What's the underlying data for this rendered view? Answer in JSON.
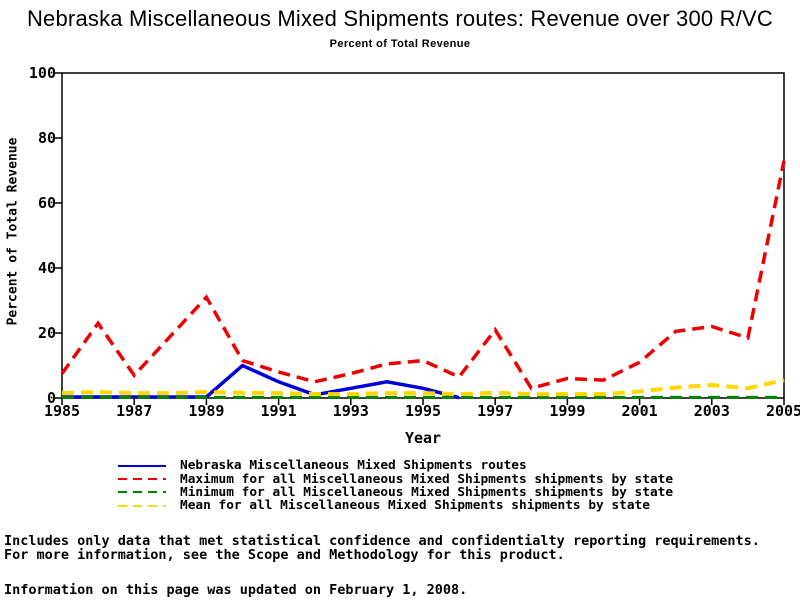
{
  "title": "Nebraska Miscellaneous Mixed Shipments routes: Revenue over 300 R/VC",
  "subtitle": "Percent of Total Revenue",
  "footnotes": {
    "line1": "Includes only data that met statistical confidence and confidentialty reporting requirements.",
    "line2": "For more information, see the Scope and Methodology for this product.",
    "updated": "Information on this page was updated on February 1, 2008."
  },
  "chart_data": {
    "type": "line",
    "title": "Nebraska Miscellaneous Mixed Shipments routes: Revenue over 300 R/VC",
    "subtitle": "Percent of Total Revenue",
    "xlabel": "Year",
    "ylabel": "Percent of Total Revenue",
    "xlim": [
      1985,
      2005
    ],
    "ylim": [
      0,
      100
    ],
    "x_ticks": [
      1985,
      1987,
      1989,
      1991,
      1993,
      1995,
      1997,
      1999,
      2001,
      2003,
      2005
    ],
    "y_ticks": [
      0,
      20,
      40,
      60,
      80,
      100
    ],
    "grid": false,
    "frame": true,
    "legend_position": "bottom",
    "axis_color": "#000000",
    "series": [
      {
        "key": "nebraska",
        "name": "Nebraska Miscellaneous Mixed Shipments routes",
        "color": "#0000dd",
        "style": "solid",
        "width": 3.5,
        "x": [
          1985,
          1986,
          1987,
          1988,
          1989,
          1990,
          1991,
          1992,
          1993,
          1994,
          1995,
          1996
        ],
        "values": [
          0.3,
          0.3,
          0.3,
          0.3,
          0.3,
          10,
          5,
          1,
          3,
          5,
          3,
          0.1
        ]
      },
      {
        "key": "maximum",
        "name": "Maximum for all Miscellaneous Mixed Shipments shipments by state",
        "color": "#ee0000",
        "style": "dashed",
        "width": 3.5,
        "x": [
          1985,
          1986,
          1987,
          1988,
          1989,
          1990,
          1991,
          1992,
          1993,
          1994,
          1995,
          1996,
          1997,
          1998,
          1999,
          2000,
          2001,
          2002,
          2003,
          2004,
          2005
        ],
        "values": [
          7.5,
          23,
          7,
          19,
          31,
          11.5,
          8,
          5,
          7.5,
          10.5,
          11.5,
          6.5,
          21,
          3,
          6,
          5.5,
          11,
          20.5,
          22,
          18.5,
          73
        ]
      },
      {
        "key": "minimum",
        "name": "Minimum for all Miscellaneous Mixed Shipments shipments by state",
        "color": "#008000",
        "style": "dashed",
        "width": 3,
        "x": [
          1985,
          1986,
          1987,
          1988,
          1989,
          1990,
          1991,
          1992,
          1993,
          1994,
          1995,
          1996,
          1997,
          1998,
          1999,
          2000,
          2001,
          2002,
          2003,
          2004,
          2005
        ],
        "values": [
          0.2,
          0.2,
          0.2,
          0.2,
          0.2,
          0.2,
          0.2,
          0.2,
          0.2,
          0.2,
          0.2,
          0.2,
          0.2,
          0.2,
          0.2,
          0.2,
          0.2,
          0.2,
          0.2,
          0.2,
          0.2
        ]
      },
      {
        "key": "mean",
        "name": "Mean for all Miscellaneous Mixed Shipments shipments by state",
        "color": "#ffd700",
        "style": "dashed",
        "width": 4,
        "x": [
          1985,
          1986,
          1987,
          1988,
          1989,
          1990,
          1991,
          1992,
          1993,
          1994,
          1995,
          1996,
          1997,
          1998,
          1999,
          2000,
          2001,
          2002,
          2003,
          2004,
          2005
        ],
        "values": [
          1.5,
          1.8,
          1.5,
          1.5,
          1.8,
          1.6,
          1.5,
          1.2,
          1.2,
          1.5,
          1.5,
          1.2,
          1.6,
          1.2,
          1.2,
          1.2,
          2,
          3.2,
          4,
          3,
          5.5
        ]
      }
    ]
  }
}
